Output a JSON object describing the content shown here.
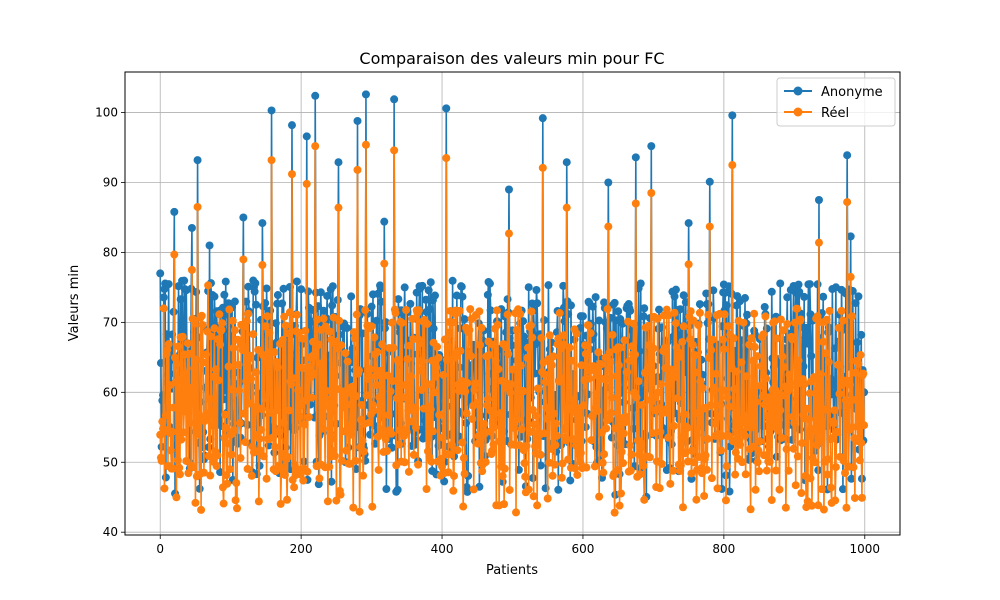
{
  "chart_data": {
    "type": "line",
    "title": "Comparaison des valeurs min pour FC",
    "xlabel": "Patients",
    "ylabel": "Valeurs min",
    "xlim": [
      -50,
      1050
    ],
    "ylim": [
      39.6,
      105.8
    ],
    "xticks": [
      0,
      200,
      400,
      600,
      800,
      1000
    ],
    "yticks": [
      40,
      50,
      60,
      70,
      80,
      90,
      100
    ],
    "grid": true,
    "legend_position": "top-right",
    "series": [
      {
        "name": "Anonyme",
        "color": "#1f77b4",
        "marker": "circle",
        "n_points": 1000,
        "range": [
          45,
          102.5
        ],
        "typical_range": [
          52,
          76
        ],
        "peaks": [
          {
            "x": 0,
            "y": 77
          },
          {
            "x": 20,
            "y": 85.8
          },
          {
            "x": 45,
            "y": 83.5
          },
          {
            "x": 53,
            "y": 93.2
          },
          {
            "x": 70,
            "y": 81
          },
          {
            "x": 118,
            "y": 85
          },
          {
            "x": 145,
            "y": 84.2
          },
          {
            "x": 158,
            "y": 100.3
          },
          {
            "x": 187,
            "y": 98.2
          },
          {
            "x": 208,
            "y": 96.6
          },
          {
            "x": 220,
            "y": 102.4
          },
          {
            "x": 253,
            "y": 92.9
          },
          {
            "x": 280,
            "y": 98.8
          },
          {
            "x": 292,
            "y": 102.6
          },
          {
            "x": 318,
            "y": 84.4
          },
          {
            "x": 332,
            "y": 101.9
          },
          {
            "x": 406,
            "y": 100.6
          },
          {
            "x": 495,
            "y": 89
          },
          {
            "x": 543,
            "y": 99.2
          },
          {
            "x": 577,
            "y": 92.9
          },
          {
            "x": 636,
            "y": 90
          },
          {
            "x": 675,
            "y": 93.6
          },
          {
            "x": 697,
            "y": 95.2
          },
          {
            "x": 750,
            "y": 84.2
          },
          {
            "x": 780,
            "y": 90.1
          },
          {
            "x": 812,
            "y": 99.6
          },
          {
            "x": 935,
            "y": 87.5
          },
          {
            "x": 975,
            "y": 93.9
          },
          {
            "x": 980,
            "y": 82.3
          }
        ]
      },
      {
        "name": "Réel",
        "color": "#ff7f0e",
        "marker": "circle",
        "n_points": 1000,
        "range": [
          42.8,
          95.4
        ],
        "typical_range": [
          48,
          72
        ],
        "peaks": [
          {
            "x": 5,
            "y": 72
          },
          {
            "x": 20,
            "y": 79.7
          },
          {
            "x": 45,
            "y": 77.5
          },
          {
            "x": 53,
            "y": 86.5
          },
          {
            "x": 68,
            "y": 75.3
          },
          {
            "x": 118,
            "y": 79
          },
          {
            "x": 145,
            "y": 78.2
          },
          {
            "x": 158,
            "y": 93.2
          },
          {
            "x": 187,
            "y": 91.2
          },
          {
            "x": 208,
            "y": 89.8
          },
          {
            "x": 220,
            "y": 95.2
          },
          {
            "x": 253,
            "y": 86.4
          },
          {
            "x": 280,
            "y": 91.8
          },
          {
            "x": 292,
            "y": 95.4
          },
          {
            "x": 318,
            "y": 78.4
          },
          {
            "x": 332,
            "y": 94.6
          },
          {
            "x": 406,
            "y": 93.5
          },
          {
            "x": 495,
            "y": 82.7
          },
          {
            "x": 543,
            "y": 92.1
          },
          {
            "x": 577,
            "y": 86.4
          },
          {
            "x": 636,
            "y": 83.7
          },
          {
            "x": 675,
            "y": 87
          },
          {
            "x": 697,
            "y": 88.5
          },
          {
            "x": 750,
            "y": 78.3
          },
          {
            "x": 780,
            "y": 83.7
          },
          {
            "x": 812,
            "y": 92.5
          },
          {
            "x": 935,
            "y": 81.4
          },
          {
            "x": 975,
            "y": 87.2
          },
          {
            "x": 980,
            "y": 76.5
          }
        ],
        "lows": [
          {
            "x": 50,
            "y": 44.2
          },
          {
            "x": 90,
            "y": 44.1
          },
          {
            "x": 140,
            "y": 44.4
          },
          {
            "x": 645,
            "y": 42.8
          },
          {
            "x": 910,
            "y": 45.6
          }
        ]
      }
    ]
  }
}
